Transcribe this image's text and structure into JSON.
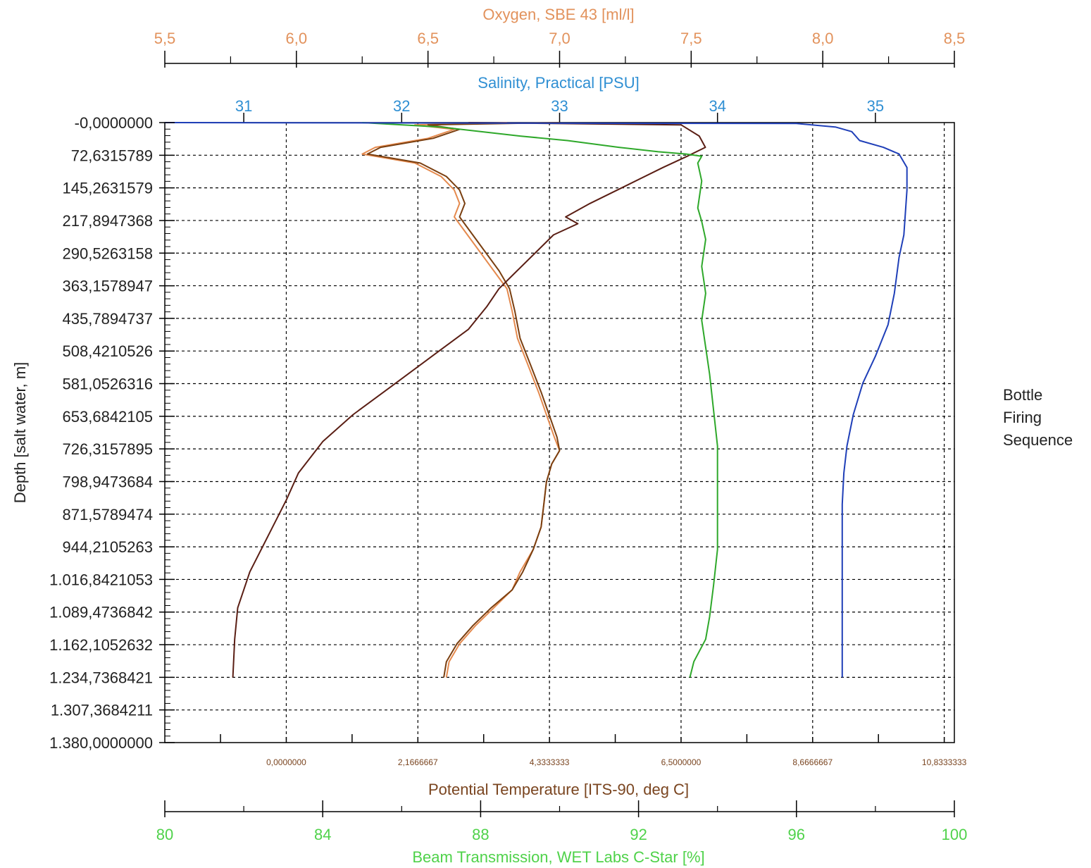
{
  "chart_data": {
    "type": "line",
    "title": "",
    "side_label": {
      "lines": [
        "Bottle",
        "Firing",
        "Sequence"
      ]
    },
    "depth_axis": {
      "label": "Depth [salt water, m]",
      "range": [
        0,
        1380
      ],
      "inverted": true,
      "ticks": [
        {
          "value": 0,
          "label": "-0,0000000"
        },
        {
          "value": 72.6315789,
          "label": "72,6315789"
        },
        {
          "value": 145.2631579,
          "label": "145,2631579"
        },
        {
          "value": 217.8947368,
          "label": "217,8947368"
        },
        {
          "value": 290.5263158,
          "label": "290,5263158"
        },
        {
          "value": 363.1578947,
          "label": "363,1578947"
        },
        {
          "value": 435.7894737,
          "label": "435,7894737"
        },
        {
          "value": 508.4210526,
          "label": "508,4210526"
        },
        {
          "value": 581.0526316,
          "label": "581,0526316"
        },
        {
          "value": 653.6842105,
          "label": "653,6842105"
        },
        {
          "value": 726.3157895,
          "label": "726,3157895"
        },
        {
          "value": 798.9473684,
          "label": "798,9473684"
        },
        {
          "value": 871.5789474,
          "label": "871,5789474"
        },
        {
          "value": 944.2105263,
          "label": "944,2105263"
        },
        {
          "value": 1016.8421053,
          "label": "1.016,8421053"
        },
        {
          "value": 1089.4736842,
          "label": "1.089,4736842"
        },
        {
          "value": 1162.1052632,
          "label": "1.162,1052632"
        },
        {
          "value": 1234.7368421,
          "label": "1.234,7368421"
        },
        {
          "value": 1307.3684211,
          "label": "1.307,3684211"
        },
        {
          "value": 1380,
          "label": "1.380,0000000"
        }
      ]
    },
    "oxygen_axis": {
      "label": "Oxygen, SBE 43 [ml/l]",
      "range": [
        5.5,
        8.5
      ],
      "ticks": [
        {
          "value": 5.5,
          "label": "5,5"
        },
        {
          "value": 6.0,
          "label": "6,0"
        },
        {
          "value": 6.5,
          "label": "6,5"
        },
        {
          "value": 7.0,
          "label": "7,0"
        },
        {
          "value": 7.5,
          "label": "7,5"
        },
        {
          "value": 8.0,
          "label": "8,0"
        },
        {
          "value": 8.5,
          "label": "8,5"
        }
      ]
    },
    "salinity_axis": {
      "label": "Salinity, Practical [PSU]",
      "range": [
        30.5,
        35.5
      ],
      "ticks": [
        {
          "value": 31,
          "label": "31"
        },
        {
          "value": 32,
          "label": "32"
        },
        {
          "value": 33,
          "label": "33"
        },
        {
          "value": 34,
          "label": "34"
        },
        {
          "value": 35,
          "label": "35"
        }
      ]
    },
    "temperature_axis": {
      "label": "Potential Temperature [ITS-90, deg C]",
      "range": [
        -2.0,
        11.0
      ],
      "ticks": [
        {
          "value": 0.0,
          "label": "0,0000000"
        },
        {
          "value": 2.1666667,
          "label": "2,1666667"
        },
        {
          "value": 4.3333333,
          "label": "4,3333333"
        },
        {
          "value": 6.5,
          "label": "6,5000000"
        },
        {
          "value": 8.6666667,
          "label": "8,6666667"
        },
        {
          "value": 10.8333333,
          "label": "10,8333333"
        }
      ]
    },
    "transmission_axis": {
      "label": "Beam Transmission, WET Labs C-Star [%]",
      "range": [
        80,
        100
      ],
      "ticks": [
        {
          "value": 80,
          "label": "80"
        },
        {
          "value": 84,
          "label": "84"
        },
        {
          "value": 88,
          "label": "88"
        },
        {
          "value": 92,
          "label": "92"
        },
        {
          "value": 96,
          "label": "96"
        },
        {
          "value": 100,
          "label": "100"
        }
      ]
    },
    "grid": true,
    "series": [
      {
        "axis": "oxygen_axis",
        "color": "#e58a4e",
        "points": [
          [
            6.8,
            0
          ],
          [
            6.45,
            5
          ],
          [
            6.6,
            15
          ],
          [
            6.5,
            35
          ],
          [
            6.3,
            55
          ],
          [
            6.25,
            70
          ],
          [
            6.45,
            90
          ],
          [
            6.55,
            120
          ],
          [
            6.6,
            150
          ],
          [
            6.62,
            180
          ],
          [
            6.6,
            210
          ],
          [
            6.65,
            250
          ],
          [
            6.7,
            290
          ],
          [
            6.75,
            330
          ],
          [
            6.8,
            370
          ],
          [
            6.82,
            420
          ],
          [
            6.84,
            480
          ],
          [
            6.88,
            540
          ],
          [
            6.92,
            600
          ],
          [
            6.95,
            650
          ],
          [
            6.98,
            700
          ],
          [
            7.0,
            730
          ],
          [
            6.97,
            760
          ],
          [
            6.95,
            800
          ],
          [
            6.94,
            850
          ],
          [
            6.93,
            900
          ],
          [
            6.9,
            950
          ],
          [
            6.85,
            1000
          ],
          [
            6.82,
            1040
          ],
          [
            6.75,
            1080
          ],
          [
            6.68,
            1120
          ],
          [
            6.62,
            1160
          ],
          [
            6.58,
            1200
          ],
          [
            6.57,
            1235
          ]
        ]
      },
      {
        "axis": "oxygen_axis",
        "color": "#7a3f10",
        "points": [
          [
            7.0,
            0
          ],
          [
            6.5,
            5
          ],
          [
            6.62,
            15
          ],
          [
            6.52,
            35
          ],
          [
            6.32,
            55
          ],
          [
            6.27,
            70
          ],
          [
            6.47,
            90
          ],
          [
            6.57,
            120
          ],
          [
            6.62,
            150
          ],
          [
            6.64,
            180
          ],
          [
            6.62,
            210
          ],
          [
            6.67,
            250
          ],
          [
            6.72,
            290
          ],
          [
            6.77,
            330
          ],
          [
            6.81,
            370
          ],
          [
            6.83,
            420
          ],
          [
            6.85,
            480
          ],
          [
            6.89,
            540
          ],
          [
            6.93,
            600
          ],
          [
            6.96,
            650
          ],
          [
            6.99,
            700
          ],
          [
            7.0,
            730
          ],
          [
            6.97,
            760
          ],
          [
            6.95,
            800
          ],
          [
            6.94,
            850
          ],
          [
            6.93,
            900
          ],
          [
            6.9,
            950
          ],
          [
            6.86,
            1000
          ],
          [
            6.82,
            1040
          ],
          [
            6.74,
            1080
          ],
          [
            6.67,
            1120
          ],
          [
            6.61,
            1160
          ],
          [
            6.57,
            1200
          ],
          [
            6.56,
            1235
          ]
        ]
      },
      {
        "axis": "temperature_axis",
        "color": "#5a1e14",
        "points": [
          [
            3.0,
            0
          ],
          [
            6.5,
            5
          ],
          [
            6.8,
            30
          ],
          [
            6.9,
            55
          ],
          [
            6.6,
            75
          ],
          [
            6.2,
            100
          ],
          [
            5.6,
            140
          ],
          [
            5.0,
            180
          ],
          [
            4.6,
            210
          ],
          [
            4.8,
            225
          ],
          [
            4.4,
            250
          ],
          [
            4.1,
            290
          ],
          [
            3.8,
            330
          ],
          [
            3.5,
            370
          ],
          [
            3.3,
            410
          ],
          [
            3.0,
            460
          ],
          [
            2.4,
            520
          ],
          [
            1.8,
            580
          ],
          [
            1.1,
            650
          ],
          [
            0.6,
            710
          ],
          [
            0.2,
            780
          ],
          [
            0.0,
            840
          ],
          [
            -0.3,
            920
          ],
          [
            -0.6,
            1000
          ],
          [
            -0.8,
            1080
          ],
          [
            -0.85,
            1150
          ],
          [
            -0.88,
            1235
          ]
        ]
      },
      {
        "axis": "transmission_axis",
        "color": "#2ea82a",
        "points": [
          [
            85.0,
            0
          ],
          [
            87.0,
            10
          ],
          [
            88.0,
            20
          ],
          [
            89.0,
            30
          ],
          [
            90.2,
            40
          ],
          [
            91.5,
            55
          ],
          [
            92.5,
            65
          ],
          [
            93.2,
            70
          ],
          [
            93.6,
            75
          ],
          [
            93.5,
            90
          ],
          [
            93.6,
            130
          ],
          [
            93.5,
            190
          ],
          [
            93.6,
            220
          ],
          [
            93.7,
            260
          ],
          [
            93.6,
            320
          ],
          [
            93.7,
            380
          ],
          [
            93.6,
            440
          ],
          [
            93.7,
            500
          ],
          [
            93.8,
            560
          ],
          [
            93.9,
            640
          ],
          [
            94.0,
            720
          ],
          [
            94.0,
            800
          ],
          [
            94.0,
            880
          ],
          [
            94.0,
            950
          ],
          [
            93.9,
            1030
          ],
          [
            93.8,
            1100
          ],
          [
            93.7,
            1150
          ],
          [
            93.4,
            1200
          ],
          [
            93.3,
            1235
          ]
        ]
      },
      {
        "axis": "salinity_axis",
        "color": "#1f3fb8",
        "points": [
          [
            30.5,
            0
          ],
          [
            34.5,
            2
          ],
          [
            34.75,
            10
          ],
          [
            34.85,
            20
          ],
          [
            34.9,
            40
          ],
          [
            35.05,
            55
          ],
          [
            35.15,
            70
          ],
          [
            35.2,
            100
          ],
          [
            35.2,
            150
          ],
          [
            35.19,
            200
          ],
          [
            35.18,
            250
          ],
          [
            35.15,
            300
          ],
          [
            35.12,
            380
          ],
          [
            35.08,
            450
          ],
          [
            35.0,
            520
          ],
          [
            34.92,
            580
          ],
          [
            34.86,
            650
          ],
          [
            34.82,
            720
          ],
          [
            34.8,
            780
          ],
          [
            34.79,
            850
          ],
          [
            34.79,
            950
          ],
          [
            34.79,
            1100
          ],
          [
            34.79,
            1235
          ]
        ]
      }
    ]
  }
}
